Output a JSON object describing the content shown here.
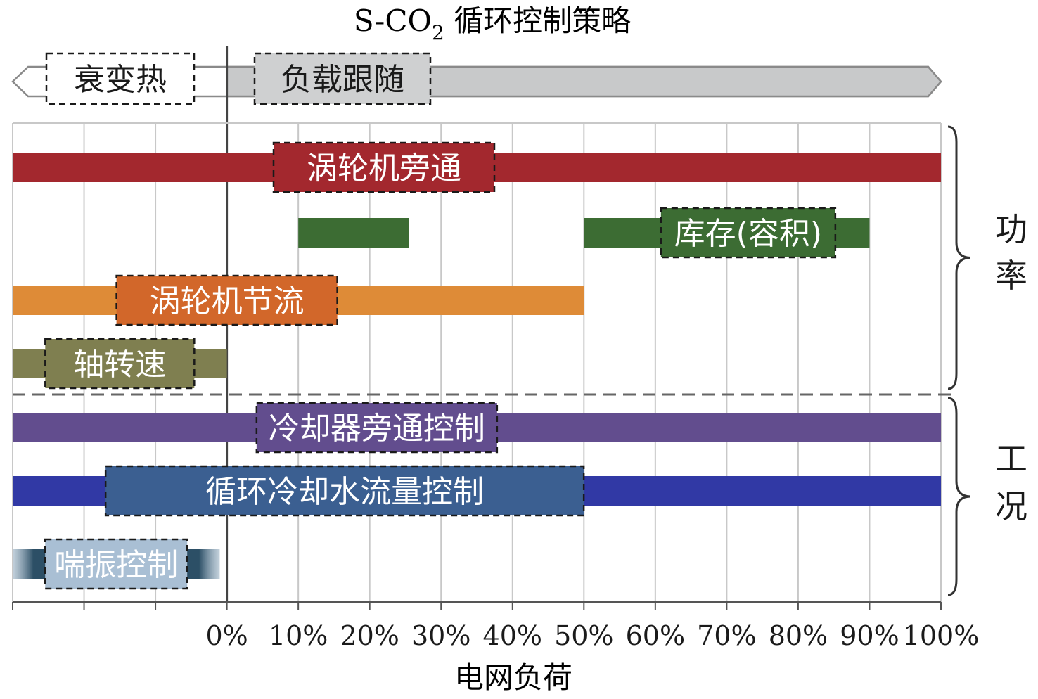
{
  "chart_data": {
    "type": "bar",
    "subtype": "horizontal-range (gantt)",
    "title_main": "S-CO",
    "title_sub": "2",
    "title_rest": " 循环控制策略",
    "xlabel": "电网负荷",
    "xlim": [
      -30,
      100
    ],
    "x_ticks": [
      0,
      10,
      20,
      30,
      40,
      50,
      60,
      70,
      80,
      90,
      100
    ],
    "x_tick_labels": [
      "0%",
      "10%",
      "20%",
      "30%",
      "40%",
      "50%",
      "60%",
      "70%",
      "80%",
      "90%",
      "100%"
    ],
    "grid": true,
    "mode_bands": [
      {
        "label": "衰变热",
        "start": -30,
        "end": 0,
        "fill": "#ffffff"
      },
      {
        "label": "负载跟随",
        "start": 0,
        "end": 100,
        "fill": "#c8c9ca"
      }
    ],
    "series": [
      {
        "name": "涡轮机旁通",
        "segments": [
          [
            -30,
            100
          ]
        ],
        "color": "#a3282e",
        "label_color": "#ffffff"
      },
      {
        "name": "库存(容积)",
        "segments": [
          [
            10,
            25.5
          ],
          [
            50,
            90
          ]
        ],
        "color": "#3c6c33",
        "label_color": "#ffffff"
      },
      {
        "name": "涡轮机节流",
        "segments": [
          [
            -30,
            50
          ]
        ],
        "color": "#de8b37",
        "label_color": "#ffffff"
      },
      {
        "name": "轴转速",
        "segments": [
          [
            -30,
            0
          ]
        ],
        "color": "#7f7f50",
        "label_color": "#ffffff"
      },
      {
        "name": "冷却器旁通控制",
        "segments": [
          [
            -30,
            100
          ]
        ],
        "color": "#624d8e",
        "label_color": "#ffffff"
      },
      {
        "name": "循环冷却水流量控制",
        "segments": [
          [
            -30,
            100
          ]
        ],
        "color": "#3139a5",
        "label_color": "#ffffff"
      },
      {
        "name": "喘振控制",
        "segments": [
          [
            -30,
            -1
          ]
        ],
        "color": "#5a7c95",
        "label_color": "#ffffff"
      }
    ],
    "groups": [
      {
        "label": "功率",
        "series": [
          "涡轮机旁通",
          "库存(容积)",
          "涡轮机节流",
          "轴转速"
        ]
      },
      {
        "label": "工况",
        "series": [
          "冷却器旁通控制",
          "循环冷却水流量控制",
          "喘振控制"
        ]
      }
    ]
  }
}
